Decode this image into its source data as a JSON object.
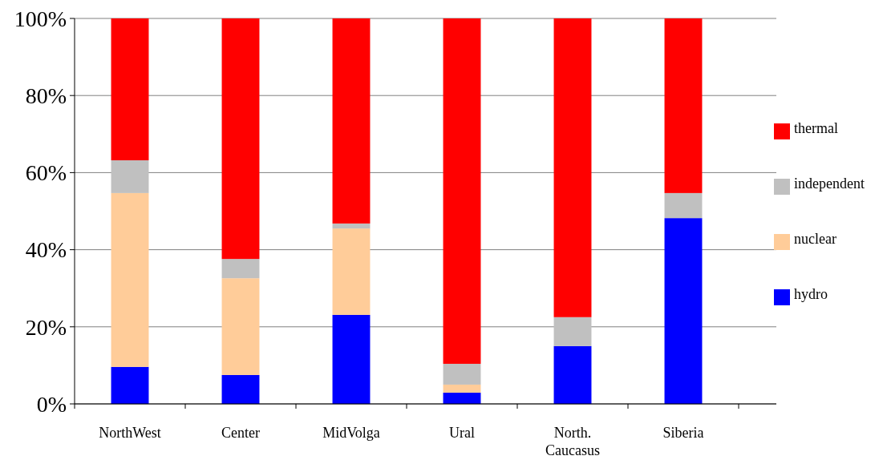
{
  "chart_data": {
    "type": "bar",
    "stacked": true,
    "categories": [
      "NorthWest",
      "Center",
      "MidVolga",
      "Ural",
      "North.\nCaucasus",
      "Siberia"
    ],
    "series": [
      {
        "name": "hydro",
        "color": "#0000ff",
        "values": [
          9.6,
          7.5,
          23.1,
          2.9,
          15.0,
          48.2
        ]
      },
      {
        "name": "nuclear",
        "color": "#ffcc99",
        "values": [
          45.1,
          25.1,
          22.4,
          2.1,
          0,
          0
        ]
      },
      {
        "name": "independent",
        "color": "#c0c0c0",
        "values": [
          8.5,
          5.0,
          1.3,
          5.4,
          7.5,
          6.5
        ]
      },
      {
        "name": "thermal",
        "color": "#ff0000",
        "values": [
          36.8,
          62.4,
          53.2,
          89.6,
          77.5,
          45.3
        ]
      }
    ],
    "ylim": [
      0,
      100
    ],
    "yticks": [
      {
        "value": 0,
        "label": "0%"
      },
      {
        "value": 20,
        "label": "20%"
      },
      {
        "value": 40,
        "label": "40%"
      },
      {
        "value": 60,
        "label": "60%"
      },
      {
        "value": 80,
        "label": "80%"
      },
      {
        "value": 100,
        "label": "100%"
      }
    ],
    "grid": "y",
    "legend": "right"
  }
}
